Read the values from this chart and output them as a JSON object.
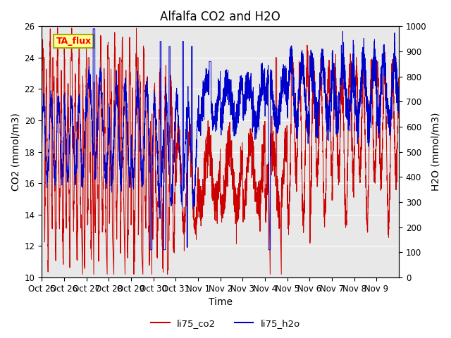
{
  "title": "Alfalfa CO2 and H2O",
  "xlabel": "Time",
  "ylabel_left": "CO2 (mmol/m3)",
  "ylabel_right": "H2O (mmol/m3)",
  "ylim_left": [
    10,
    26
  ],
  "ylim_right": [
    0,
    1000
  ],
  "yticks_left": [
    10,
    12,
    14,
    16,
    18,
    20,
    22,
    24,
    26
  ],
  "yticks_right": [
    0,
    100,
    200,
    300,
    400,
    500,
    600,
    700,
    800,
    900,
    1000
  ],
  "xtick_labels": [
    "Oct 25",
    "Oct 26",
    "Oct 27",
    "Oct 28",
    "Oct 29",
    "Oct 30",
    "Oct 31",
    "Nov 1",
    "Nov 2",
    "Nov 3",
    "Nov 4",
    "Nov 5",
    "Nov 6",
    "Nov 7",
    "Nov 8",
    "Nov 9"
  ],
  "color_co2": "#cc0000",
  "color_h2o": "#0000cc",
  "legend_label_co2": "li75_co2",
  "legend_label_h2o": "li75_h2o",
  "annotation_text": "TA_flux",
  "background_color": "#e8e8e8",
  "grid_color": "#ffffff",
  "title_fontsize": 12,
  "axis_label_fontsize": 10,
  "tick_fontsize": 8.5,
  "linewidth": 0.7
}
